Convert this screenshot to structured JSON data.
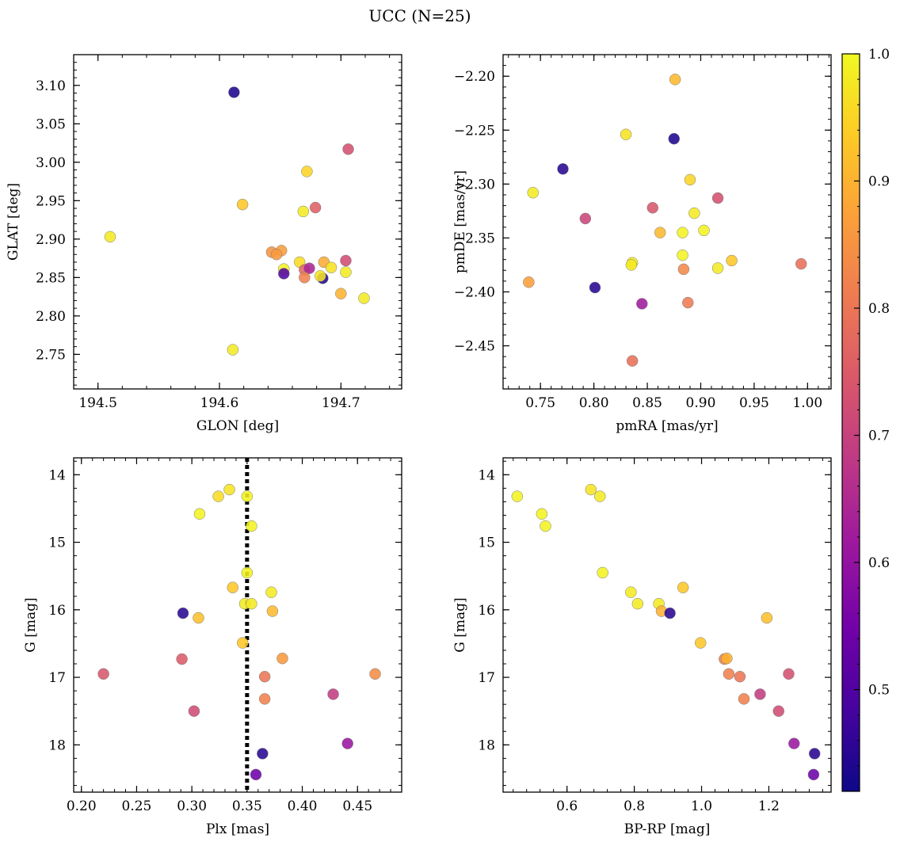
{
  "figure_title": "UCC (N=25)",
  "colorbar": {
    "range": [
      0.42,
      1.0
    ],
    "ticks": [
      "0.5",
      "0.6",
      "0.7",
      "0.8",
      "0.9",
      "1.0"
    ],
    "tick_values": [
      0.5,
      0.6,
      0.7,
      0.8,
      0.9,
      1.0
    ],
    "colormap": "plasma",
    "stops": [
      "#0d0887",
      "#46039f",
      "#7201a8",
      "#9c179e",
      "#bd3786",
      "#d8576b",
      "#ed7953",
      "#fb9f3a",
      "#fdca26",
      "#f0f921"
    ]
  },
  "chart_data": [
    {
      "type": "scatter",
      "xlabel": "GLON [deg]",
      "ylabel": "GLAT [deg]",
      "xlim": [
        194.48,
        194.75
      ],
      "ylim": [
        2.705,
        3.14
      ],
      "xticks": [
        "194.5",
        "194.6",
        "194.7"
      ],
      "xtick_values": [
        194.5,
        194.6,
        194.7
      ],
      "yticks": [
        "2.75",
        "2.80",
        "2.85",
        "2.90",
        "2.95",
        "3.00",
        "3.05",
        "3.10"
      ],
      "ytick_values": [
        2.75,
        2.8,
        2.85,
        2.9,
        2.95,
        3.0,
        3.05,
        3.1
      ],
      "points": [
        {
          "x": 194.612,
          "y": 3.091,
          "c": 0.44
        },
        {
          "x": 194.706,
          "y": 3.017,
          "c": 0.73
        },
        {
          "x": 194.672,
          "y": 2.988,
          "c": 0.95
        },
        {
          "x": 194.619,
          "y": 2.945,
          "c": 0.93
        },
        {
          "x": 194.679,
          "y": 2.941,
          "c": 0.76
        },
        {
          "x": 194.669,
          "y": 2.936,
          "c": 0.98
        },
        {
          "x": 194.51,
          "y": 2.903,
          "c": 0.98
        },
        {
          "x": 194.643,
          "y": 2.883,
          "c": 0.85
        },
        {
          "x": 194.651,
          "y": 2.885,
          "c": 0.87
        },
        {
          "x": 194.647,
          "y": 2.88,
          "c": 0.86
        },
        {
          "x": 194.666,
          "y": 2.87,
          "c": 0.96
        },
        {
          "x": 194.686,
          "y": 2.87,
          "c": 0.89
        },
        {
          "x": 194.704,
          "y": 2.872,
          "c": 0.72
        },
        {
          "x": 194.692,
          "y": 2.863,
          "c": 0.97
        },
        {
          "x": 194.653,
          "y": 2.861,
          "c": 0.99
        },
        {
          "x": 194.67,
          "y": 2.86,
          "c": 0.77
        },
        {
          "x": 194.674,
          "y": 2.862,
          "c": 0.64
        },
        {
          "x": 194.653,
          "y": 2.855,
          "c": 0.5
        },
        {
          "x": 194.704,
          "y": 2.857,
          "c": 0.98
        },
        {
          "x": 194.67,
          "y": 2.85,
          "c": 0.82
        },
        {
          "x": 194.685,
          "y": 2.849,
          "c": 0.44
        },
        {
          "x": 194.683,
          "y": 2.852,
          "c": 0.97
        },
        {
          "x": 194.7,
          "y": 2.829,
          "c": 0.9
        },
        {
          "x": 194.719,
          "y": 2.823,
          "c": 0.98
        },
        {
          "x": 194.611,
          "y": 2.756,
          "c": 0.98
        }
      ]
    },
    {
      "type": "scatter",
      "xlabel": "pmRA [mas/yr]",
      "ylabel": "pmDE [mas/yr]",
      "xlim": [
        0.715,
        1.022
      ],
      "ylim": [
        -2.49,
        -2.18
      ],
      "xticks": [
        "0.75",
        "0.80",
        "0.85",
        "0.90",
        "0.95",
        "1.00"
      ],
      "xtick_values": [
        0.75,
        0.8,
        0.85,
        0.9,
        0.95,
        1.0
      ],
      "yticks": [
        "−2.45",
        "−2.40",
        "−2.35",
        "−2.30",
        "−2.25",
        "−2.20"
      ],
      "ytick_values": [
        -2.45,
        -2.4,
        -2.35,
        -2.3,
        -2.25,
        -2.2
      ],
      "points": [
        {
          "x": 0.876,
          "y": -2.203,
          "c": 0.91
        },
        {
          "x": 0.83,
          "y": -2.254,
          "c": 0.97
        },
        {
          "x": 0.875,
          "y": -2.258,
          "c": 0.44
        },
        {
          "x": 0.771,
          "y": -2.286,
          "c": 0.45
        },
        {
          "x": 0.89,
          "y": -2.296,
          "c": 0.95
        },
        {
          "x": 0.743,
          "y": -2.308,
          "c": 0.98
        },
        {
          "x": 0.916,
          "y": -2.313,
          "c": 0.73
        },
        {
          "x": 0.855,
          "y": -2.322,
          "c": 0.74
        },
        {
          "x": 0.894,
          "y": -2.327,
          "c": 0.98
        },
        {
          "x": 0.792,
          "y": -2.332,
          "c": 0.71
        },
        {
          "x": 0.903,
          "y": -2.343,
          "c": 0.99
        },
        {
          "x": 0.862,
          "y": -2.345,
          "c": 0.91
        },
        {
          "x": 0.883,
          "y": -2.345,
          "c": 0.99
        },
        {
          "x": 0.929,
          "y": -2.371,
          "c": 0.93
        },
        {
          "x": 0.836,
          "y": -2.373,
          "c": 0.98
        },
        {
          "x": 0.835,
          "y": -2.375,
          "c": 0.98
        },
        {
          "x": 0.994,
          "y": -2.374,
          "c": 0.79
        },
        {
          "x": 0.883,
          "y": -2.366,
          "c": 0.99
        },
        {
          "x": 0.884,
          "y": -2.379,
          "c": 0.83
        },
        {
          "x": 0.916,
          "y": -2.378,
          "c": 0.98
        },
        {
          "x": 0.739,
          "y": -2.391,
          "c": 0.87
        },
        {
          "x": 0.801,
          "y": -2.396,
          "c": 0.45
        },
        {
          "x": 0.845,
          "y": -2.411,
          "c": 0.62
        },
        {
          "x": 0.888,
          "y": -2.41,
          "c": 0.81
        },
        {
          "x": 0.836,
          "y": -2.464,
          "c": 0.79
        }
      ]
    },
    {
      "type": "scatter",
      "xlabel": "Plx [mas]",
      "ylabel": "G [mag]",
      "xlim": [
        0.193,
        0.49
      ],
      "ylim": [
        18.7,
        13.75
      ],
      "yinverted": true,
      "vline": {
        "x": 0.35,
        "style": "dotted"
      },
      "xticks": [
        "0.20",
        "0.25",
        "0.30",
        "0.35",
        "0.40",
        "0.45"
      ],
      "xtick_values": [
        0.2,
        0.25,
        0.3,
        0.35,
        0.4,
        0.45
      ],
      "yticks": [
        "14",
        "15",
        "16",
        "17",
        "18"
      ],
      "ytick_values": [
        14,
        15,
        16,
        17,
        18
      ],
      "points": [
        {
          "x": 0.334,
          "y": 14.22,
          "c": 0.97
        },
        {
          "x": 0.324,
          "y": 14.32,
          "c": 0.96
        },
        {
          "x": 0.35,
          "y": 14.32,
          "c": 0.99
        },
        {
          "x": 0.354,
          "y": 14.76,
          "c": 0.99
        },
        {
          "x": 0.307,
          "y": 14.58,
          "c": 0.99
        },
        {
          "x": 0.35,
          "y": 15.45,
          "c": 0.99
        },
        {
          "x": 0.337,
          "y": 15.67,
          "c": 0.93
        },
        {
          "x": 0.372,
          "y": 15.74,
          "c": 0.98
        },
        {
          "x": 0.348,
          "y": 15.91,
          "c": 0.98
        },
        {
          "x": 0.354,
          "y": 15.91,
          "c": 0.98
        },
        {
          "x": 0.373,
          "y": 16.02,
          "c": 0.91
        },
        {
          "x": 0.292,
          "y": 16.05,
          "c": 0.45
        },
        {
          "x": 0.306,
          "y": 16.12,
          "c": 0.92
        },
        {
          "x": 0.346,
          "y": 16.49,
          "c": 0.93
        },
        {
          "x": 0.291,
          "y": 16.73,
          "c": 0.75
        },
        {
          "x": 0.382,
          "y": 16.72,
          "c": 0.86
        },
        {
          "x": 0.22,
          "y": 16.95,
          "c": 0.74
        },
        {
          "x": 0.366,
          "y": 16.99,
          "c": 0.8
        },
        {
          "x": 0.466,
          "y": 16.95,
          "c": 0.84
        },
        {
          "x": 0.428,
          "y": 17.25,
          "c": 0.69
        },
        {
          "x": 0.366,
          "y": 17.32,
          "c": 0.82
        },
        {
          "x": 0.302,
          "y": 17.5,
          "c": 0.72
        },
        {
          "x": 0.441,
          "y": 17.98,
          "c": 0.61
        },
        {
          "x": 0.364,
          "y": 18.13,
          "c": 0.45
        },
        {
          "x": 0.358,
          "y": 18.44,
          "c": 0.54
        }
      ]
    },
    {
      "type": "scatter",
      "xlabel": "BP-RP [mag]",
      "ylabel": "G [mag]",
      "xlim": [
        0.41,
        1.385
      ],
      "ylim": [
        18.7,
        13.75
      ],
      "yinverted": true,
      "xticks": [
        "0.6",
        "0.8",
        "1.0",
        "1.2"
      ],
      "xtick_values": [
        0.6,
        0.8,
        1.0,
        1.2
      ],
      "yticks": [
        "14",
        "15",
        "16",
        "17",
        "18"
      ],
      "ytick_values": [
        14,
        15,
        16,
        17,
        18
      ],
      "points": [
        {
          "x": 0.452,
          "y": 14.32,
          "c": 0.99
        },
        {
          "x": 0.671,
          "y": 14.22,
          "c": 0.97
        },
        {
          "x": 0.698,
          "y": 14.32,
          "c": 0.98
        },
        {
          "x": 0.525,
          "y": 14.58,
          "c": 0.99
        },
        {
          "x": 0.536,
          "y": 14.76,
          "c": 0.99
        },
        {
          "x": 0.706,
          "y": 15.45,
          "c": 0.99
        },
        {
          "x": 0.945,
          "y": 15.67,
          "c": 0.93
        },
        {
          "x": 0.79,
          "y": 15.74,
          "c": 0.98
        },
        {
          "x": 0.81,
          "y": 15.91,
          "c": 0.98
        },
        {
          "x": 0.873,
          "y": 15.91,
          "c": 0.98
        },
        {
          "x": 0.881,
          "y": 16.02,
          "c": 0.9
        },
        {
          "x": 0.906,
          "y": 16.05,
          "c": 0.45
        },
        {
          "x": 1.194,
          "y": 16.12,
          "c": 0.92
        },
        {
          "x": 0.997,
          "y": 16.49,
          "c": 0.93
        },
        {
          "x": 1.068,
          "y": 16.73,
          "c": 0.82
        },
        {
          "x": 1.075,
          "y": 16.72,
          "c": 0.9
        },
        {
          "x": 1.081,
          "y": 16.95,
          "c": 0.82
        },
        {
          "x": 1.114,
          "y": 16.99,
          "c": 0.8
        },
        {
          "x": 1.259,
          "y": 16.95,
          "c": 0.73
        },
        {
          "x": 1.174,
          "y": 17.25,
          "c": 0.69
        },
        {
          "x": 1.126,
          "y": 17.32,
          "c": 0.82
        },
        {
          "x": 1.229,
          "y": 17.5,
          "c": 0.72
        },
        {
          "x": 1.275,
          "y": 17.98,
          "c": 0.61
        },
        {
          "x": 1.336,
          "y": 18.13,
          "c": 0.45
        },
        {
          "x": 1.333,
          "y": 18.44,
          "c": 0.54
        }
      ]
    }
  ]
}
